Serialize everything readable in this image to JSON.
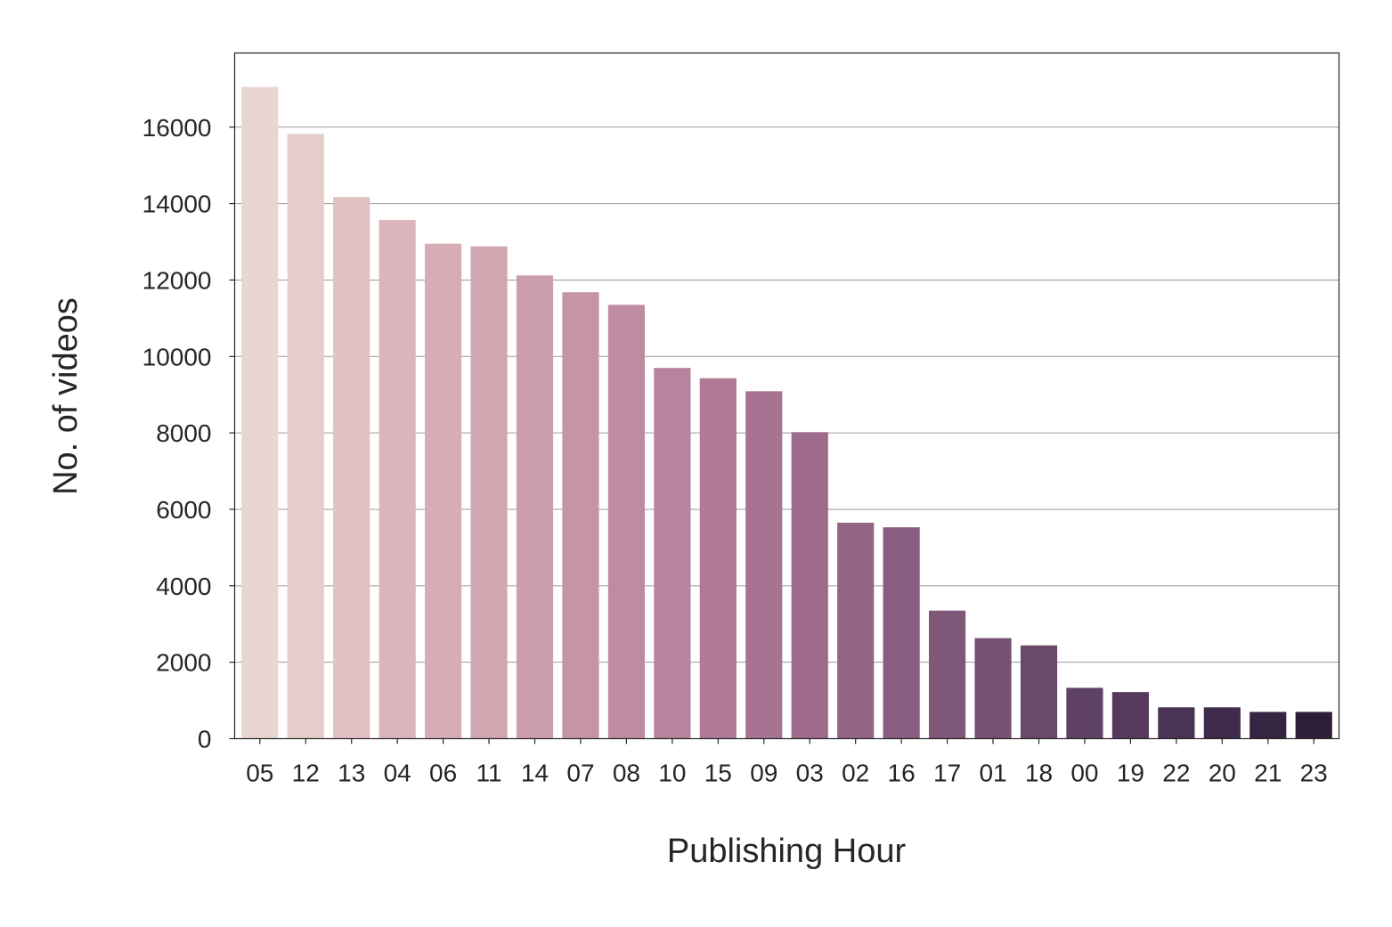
{
  "chart_data": {
    "type": "bar",
    "title": "",
    "xlabel": "Publishing Hour",
    "ylabel": "No. of videos",
    "categories": [
      "05",
      "12",
      "13",
      "04",
      "06",
      "11",
      "14",
      "07",
      "08",
      "10",
      "15",
      "09",
      "03",
      "02",
      "16",
      "17",
      "01",
      "18",
      "00",
      "19",
      "22",
      "20",
      "21",
      "23"
    ],
    "values": [
      17050,
      15820,
      14170,
      13570,
      12950,
      12880,
      12120,
      11680,
      11350,
      9700,
      9430,
      9090,
      8020,
      5650,
      5530,
      3350,
      2630,
      2440,
      1330,
      1220,
      820,
      820,
      700,
      700
    ],
    "yticks": [
      0,
      2000,
      4000,
      6000,
      8000,
      10000,
      12000,
      14000,
      16000
    ],
    "ytick_labels": [
      "0",
      "2000",
      "4000",
      "6000",
      "8000",
      "10000",
      "12000",
      "14000",
      "16000"
    ],
    "ylim": [
      0,
      17940
    ],
    "grid": "horizontal",
    "legend": "none",
    "colors": [
      "#e9d5d1",
      "#e6cccb",
      "#e1c1c3",
      "#dbb5bb",
      "#d6adb5",
      "#d1a6b1",
      "#cc9dad",
      "#c594a7",
      "#bf8ba2",
      "#b8839d",
      "#b07a97",
      "#a87392",
      "#9e6b8c",
      "#946485",
      "#895d7f",
      "#7f5779",
      "#755072",
      "#6a496b",
      "#5f4165",
      "#553a5d",
      "#4a3354",
      "#3f2b4b",
      "#362541",
      "#2c1e37"
    ]
  }
}
